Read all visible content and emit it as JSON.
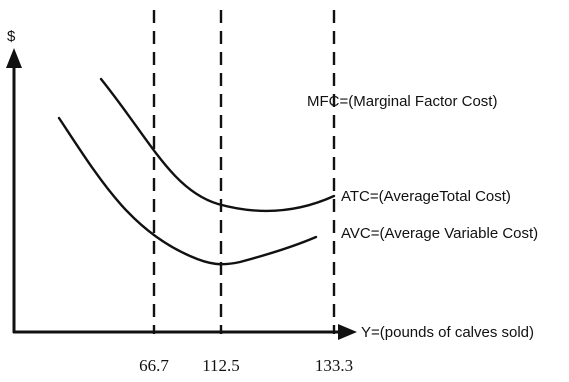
{
  "figure": {
    "y_axis_label": "$",
    "x_axis_label": "Y=(pounds of calves sold)",
    "curves": {
      "mfc": "MFC=(Marginal Factor Cost)",
      "atc": "ATC=(AverageTotal Cost)",
      "avc": "AVC=(Average Variable Cost)"
    },
    "ticks": [
      "66.7",
      "112.5",
      "133.3"
    ]
  }
}
